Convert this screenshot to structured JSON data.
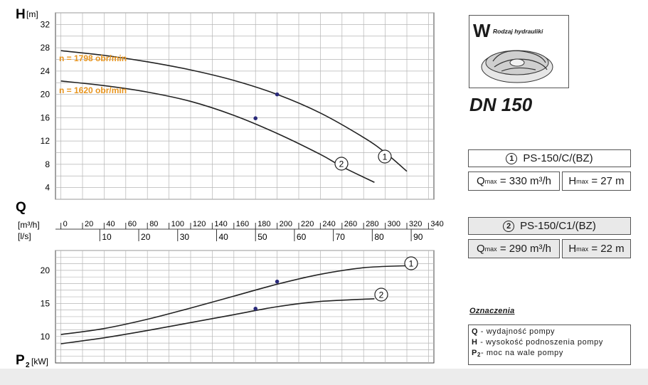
{
  "chart_data": [
    {
      "type": "line",
      "title": "",
      "ylabel": "H",
      "yunit": "[m]",
      "yticks": [
        4,
        8,
        12,
        16,
        20,
        24,
        28,
        32
      ],
      "ylim": [
        2,
        34
      ],
      "xlim": [
        -5,
        345
      ],
      "xunit": "m3/h",
      "grid": true,
      "series": [
        {
          "name": "n = 1798 obr/min",
          "marker": "1",
          "x": [
            0,
            40,
            80,
            120,
            160,
            200,
            240,
            280,
            300,
            320
          ],
          "y": [
            27.5,
            26.7,
            25.6,
            24.2,
            22.4,
            20.0,
            16.8,
            12.6,
            10.0,
            6.8
          ]
        },
        {
          "name": "n = 1620 obr/min",
          "marker": "2",
          "x": [
            0,
            40,
            80,
            120,
            160,
            200,
            240,
            260,
            290
          ],
          "y": [
            22.3,
            21.5,
            20.4,
            18.8,
            16.4,
            13.3,
            9.7,
            7.6,
            4.9
          ]
        }
      ],
      "points": [
        {
          "x": 200,
          "y": 20.0
        },
        {
          "x": 180,
          "y": 15.9
        }
      ]
    },
    {
      "type": "line",
      "title": "",
      "ylabel": "P2",
      "yunit": "[kW]",
      "yticks": [
        10,
        15,
        20
      ],
      "ylim": [
        6,
        23
      ],
      "xlim": [
        -5,
        345
      ],
      "grid": true,
      "series": [
        {
          "name": "1",
          "x": [
            0,
            40,
            80,
            120,
            160,
            200,
            240,
            280,
            320
          ],
          "y": [
            10.3,
            11.2,
            12.6,
            14.3,
            16.1,
            17.9,
            19.4,
            20.4,
            20.7
          ]
        },
        {
          "name": "2",
          "x": [
            0,
            40,
            80,
            120,
            160,
            200,
            240,
            290
          ],
          "y": [
            8.9,
            9.8,
            10.9,
            12.1,
            13.3,
            14.5,
            15.3,
            15.7
          ]
        }
      ],
      "points": [
        {
          "x": 200,
          "y": 18.3
        },
        {
          "x": 180,
          "y": 14.2
        }
      ]
    }
  ],
  "labels": {
    "h_axis": "H",
    "h_unit": "[m]",
    "q_axis": "Q",
    "q_unit_m3h": "[m³/h]",
    "q_unit_ls": "[l/s]",
    "p_axis": "P",
    "p_sub": "2",
    "p_unit": "[kW]",
    "speed_1": "n = 1798 obr/min",
    "speed_2": "n = 1620 obr/min",
    "curve_1": "1",
    "curve_2": "2"
  },
  "q_scale_m3h": [
    "0",
    "20",
    "40",
    "60",
    "80",
    "100",
    "120",
    "140",
    "160",
    "180",
    "200",
    "220",
    "240",
    "260",
    "280",
    "300",
    "320",
    "340"
  ],
  "q_scale_ls": [
    "10",
    "20",
    "30",
    "40",
    "50",
    "60",
    "70",
    "80",
    "90"
  ],
  "hydraulics": {
    "letter": "W",
    "caption": "Rodzaj hydrauliki",
    "dn": "DN 150"
  },
  "models": [
    {
      "num": "1",
      "name": "PS-150/C/(BZ)",
      "qmax": "330",
      "qunit": "m³/h",
      "hmax": "27",
      "hunit": "m"
    },
    {
      "num": "2",
      "name": "PS-150/C1/(BZ)",
      "qmax": "290",
      "qunit": "m³/h",
      "hmax": "22",
      "hunit": "m"
    }
  ],
  "qmax_label": "Q",
  "qmax_sub": "max",
  "hmax_label": "H",
  "hmax_sub": "max",
  "legend": {
    "title": "Oznaczenia",
    "items": [
      {
        "sym": "Q",
        "sub": "",
        "text": " - wydajność pompy"
      },
      {
        "sym": "H",
        "sub": "",
        "text": " - wysokość podnoszenia pompy"
      },
      {
        "sym": "P",
        "sub": "2",
        "text": "- moc na wale pompy"
      }
    ]
  },
  "colors": {
    "accent": "#e8951f",
    "curve": "#222222",
    "point": "#2a2a7a",
    "grid": "#b5b5b5"
  }
}
